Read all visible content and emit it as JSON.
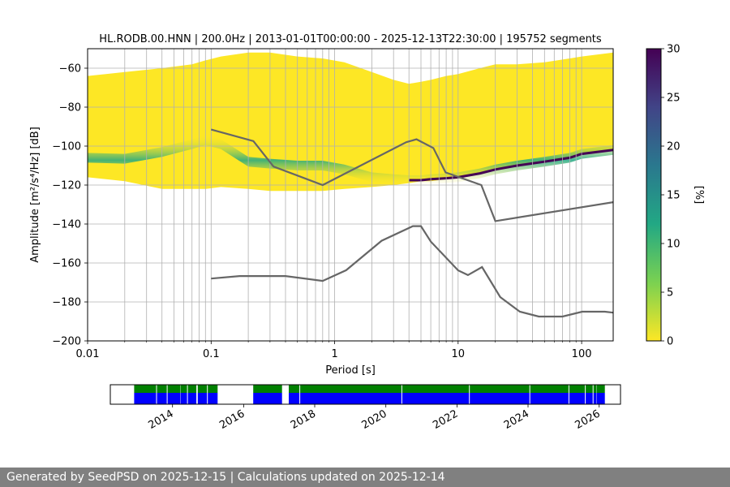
{
  "chart_data": [
    {
      "type": "heatmap",
      "title": "HL.RODB.00.HNN | 200.0Hz | 2013-01-01T00:00:00 - 2025-12-13T22:30:00 | 195752 segments",
      "xlabel": "Period [s]",
      "ylabel": "Amplitude [m²/s⁴/Hz] [dB]",
      "x_scale": "log",
      "xlim": [
        0.01,
        180
      ],
      "ylim": [
        -200,
        -50
      ],
      "x_tick_labels": [
        "0.01",
        "0.1",
        "1",
        "10",
        "100"
      ],
      "x_tick_values": [
        0.01,
        0.1,
        1,
        10,
        100
      ],
      "y_tick_values": [
        -200,
        -180,
        -160,
        -140,
        -120,
        -100,
        -80,
        -60
      ],
      "y_tick_labels": [
        "−200",
        "−180",
        "−160",
        "−140",
        "−120",
        "−100",
        "−80",
        "−60"
      ],
      "grid": true,
      "colorbar": {
        "label": "[%]",
        "min": 0,
        "max": 30,
        "tick_values": [
          0,
          5,
          10,
          15,
          20,
          25,
          30
        ],
        "tick_labels": [
          "0",
          "5",
          "10",
          "15",
          "20",
          "25",
          "30"
        ],
        "colors": [
          "#fde725",
          "#7ad151",
          "#22a884",
          "#2a788e",
          "#414487",
          "#440154"
        ]
      },
      "ppsd_band": {
        "periods": [
          0.005,
          0.01,
          0.02,
          0.04,
          0.07,
          0.09,
          0.12,
          0.2,
          0.3,
          0.5,
          0.8,
          1.2,
          2,
          3,
          4,
          5,
          6,
          8,
          10,
          15,
          20,
          30,
          50,
          80,
          100,
          180
        ],
        "top_db": [
          -64,
          -64,
          -62,
          -60,
          -58,
          -56,
          -54,
          -52,
          -52,
          -54,
          -55,
          -57,
          -62,
          -66,
          -68,
          -67,
          -66,
          -64,
          -63,
          -60,
          -58,
          -58,
          -57,
          -55,
          -54,
          -52
        ],
        "bottom_db": [
          -116,
          -116,
          -118,
          -122,
          -122,
          -122,
          -121,
          -122,
          -123,
          -123,
          -123,
          -122,
          -121,
          -120,
          -119,
          -118,
          -118,
          -117,
          -116,
          -114,
          -112,
          -110,
          -108,
          -106,
          -104,
          -102
        ],
        "mode_db": [
          -106,
          -106,
          -106.5,
          -103,
          -99,
          -97,
          -99,
          -108,
          -109,
          -110,
          -110,
          -112,
          -116,
          -117,
          -117.5,
          -117.5,
          -117,
          -116.5,
          -116,
          -114,
          -112,
          -110,
          -108,
          -106,
          -104,
          -102
        ]
      },
      "nlnm": {
        "name": "NLNM",
        "periods": [
          0.1,
          0.17,
          0.4,
          0.8,
          1.24,
          2.4,
          4.3,
          5.0,
          6.0,
          10,
          12,
          15.6,
          21.9,
          31.6,
          45,
          70,
          101,
          154,
          180
        ],
        "db": [
          -168,
          -166.7,
          -166.7,
          -169.2,
          -163.7,
          -148.6,
          -141.1,
          -141.1,
          -149.0,
          -163.8,
          -166.2,
          -162.1,
          -177.5,
          -185.0,
          -187.5,
          -187.5,
          -185.0,
          -185.0,
          -185.5
        ]
      },
      "nhnm": {
        "name": "NHNM",
        "periods": [
          0.1,
          0.22,
          0.32,
          0.8,
          3.8,
          4.6,
          6.3,
          7.9,
          15.4,
          20,
          180
        ],
        "db": [
          -91.5,
          -97.4,
          -110.5,
          -120.0,
          -98.0,
          -96.5,
          -101.0,
          -113.5,
          -120.0,
          -138.5,
          -128.8
        ]
      }
    },
    {
      "type": "timeline",
      "tick_labels": [
        "2014",
        "2016",
        "2018",
        "2020",
        "2022",
        "2024",
        "2026"
      ],
      "tick_years": [
        2014,
        2016,
        2018,
        2020,
        2022,
        2024,
        2026
      ],
      "xlim_years": [
        2012.25,
        2026.6
      ],
      "data_availability_color": "#0000ff",
      "psd_processed_color": "#008000",
      "coverage_segments": [
        [
          2012.92,
          2014.22
        ],
        [
          2014.23,
          2014.67
        ],
        [
          2014.71,
          2015.27
        ],
        [
          2016.27,
          2017.08
        ],
        [
          2017.27,
          2025.92
        ],
        [
          2025.93,
          2026.16
        ]
      ],
      "gaps": [
        2013.55,
        2013.85,
        2014.42,
        2014.98,
        2017.58,
        2020.45,
        2022.35,
        2024.05,
        2025.15,
        2025.61,
        2025.83
      ]
    }
  ],
  "footer": {
    "text": "Generated by SeedPSD on 2025-12-15 | Calculations updated on 2025-12-14"
  }
}
